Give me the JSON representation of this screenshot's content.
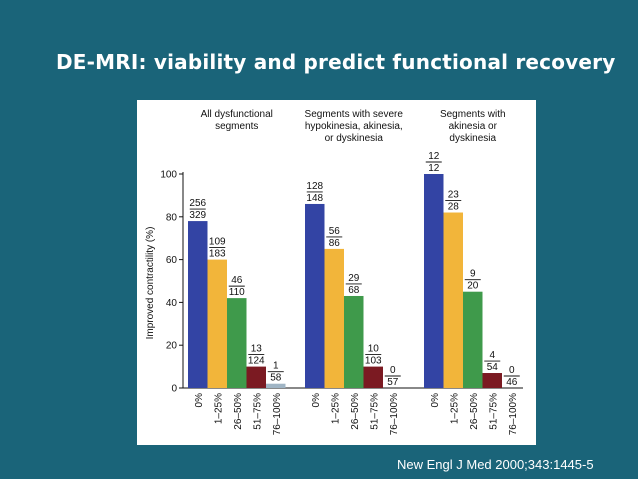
{
  "slide": {
    "title": "DE-MRI: viability and predict functional recovery",
    "citation": "New Engl J Med 2000;343:1445-5"
  },
  "colors": {
    "background": "#1a6479",
    "bars": [
      "#3344a4",
      "#f2b53a",
      "#3f9a4b",
      "#7b1a22",
      "#9fb4c4"
    ]
  },
  "chart_data": {
    "type": "bar",
    "ylabel": "Improved contractility (%)",
    "ylim": [
      0,
      100
    ],
    "yticks": [
      0,
      20,
      40,
      60,
      80,
      100
    ],
    "categories": [
      "0%",
      "1–25%",
      "26–50%",
      "51–75%",
      "76–100%"
    ],
    "groups": [
      {
        "title": [
          "All dysfunctional",
          "segments"
        ],
        "values": [
          78,
          60,
          42,
          10,
          2
        ],
        "numerators": [
          "256",
          "109",
          "46",
          "13",
          "1"
        ],
        "denominators": [
          "329",
          "183",
          "110",
          "124",
          "58"
        ]
      },
      {
        "title": [
          "Segments with severe",
          "hypokinesia, akinesia,",
          "or dyskinesia"
        ],
        "values": [
          86,
          65,
          43,
          10,
          0
        ],
        "numerators": [
          "128",
          "56",
          "29",
          "10",
          "0"
        ],
        "denominators": [
          "148",
          "86",
          "68",
          "103",
          "57"
        ]
      },
      {
        "title": [
          "Segments with",
          "akinesia or",
          "dyskinesia"
        ],
        "values": [
          100,
          82,
          45,
          7,
          0
        ],
        "numerators": [
          "12",
          "23",
          "9",
          "4",
          "0"
        ],
        "denominators": [
          "12",
          "28",
          "20",
          "54",
          "46"
        ]
      }
    ]
  }
}
